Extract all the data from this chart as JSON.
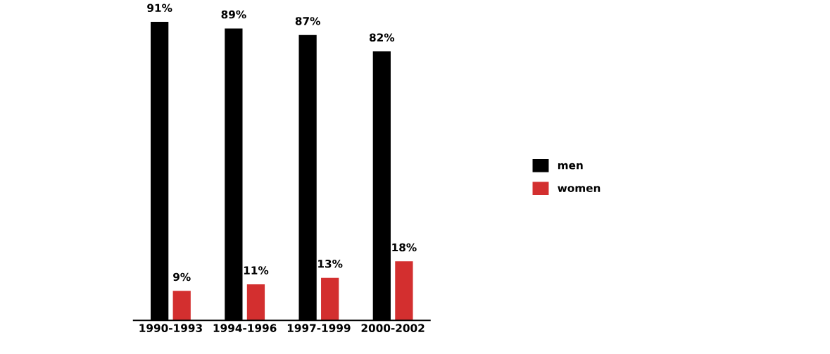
{
  "chart_data": {
    "type": "bar",
    "categories": [
      "1990-1993",
      "1994-1996",
      "1997-1999",
      "2000-2002"
    ],
    "series": [
      {
        "name": "men",
        "color": "#000000",
        "values": [
          91,
          89,
          87,
          82
        ],
        "value_labels": [
          "91%",
          "89%",
          "87%",
          "82%"
        ]
      },
      {
        "name": "women",
        "color": "#d32f2f",
        "values": [
          9,
          11,
          13,
          18
        ],
        "value_labels": [
          "9%",
          "11%",
          "13%",
          "18%"
        ]
      }
    ],
    "legend": "right",
    "grid": false,
    "tick_labels": "x"
  }
}
